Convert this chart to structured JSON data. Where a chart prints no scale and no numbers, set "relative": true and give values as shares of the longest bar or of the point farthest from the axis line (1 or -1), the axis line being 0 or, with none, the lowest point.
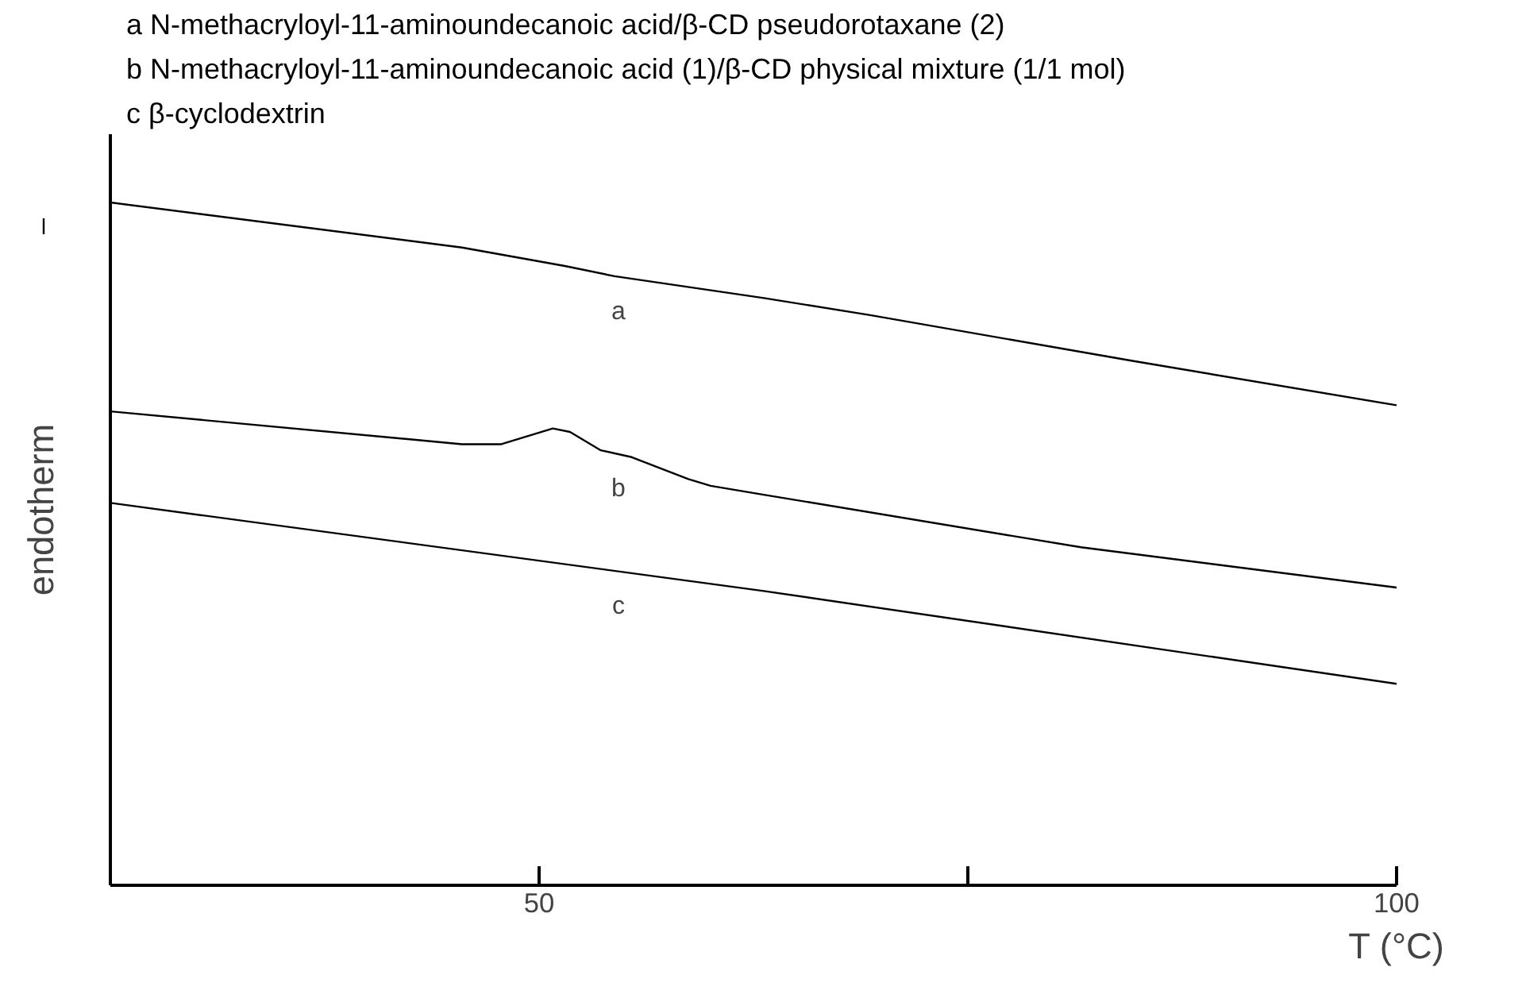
{
  "chart_data": {
    "type": "line",
    "relative": true,
    "xlabel": "T (°C)",
    "ylabel": "endotherm",
    "xlim": [
      25,
      100
    ],
    "xticks": [
      50,
      {
        "value": 75,
        "label": null
      },
      100
    ],
    "tick_labels": "x",
    "grid": false,
    "series": [
      {
        "name": "a",
        "color": "#000000",
        "x": [
          25,
          45.5,
          51.5,
          54.4,
          63.1,
          69.3,
          84.6,
          100
        ],
        "values": [
          1.0,
          0.934,
          0.907,
          0.892,
          0.86,
          0.835,
          0.768,
          0.703
        ]
      },
      {
        "name": "b",
        "color": "#000000",
        "x": [
          25,
          45.5,
          47.8,
          50.8,
          51.8,
          53.6,
          55.4,
          58.7,
          60,
          63.1,
          81.6,
          100
        ],
        "values": [
          0.694,
          0.646,
          0.646,
          0.669,
          0.664,
          0.637,
          0.627,
          0.595,
          0.585,
          0.572,
          0.495,
          0.436
        ]
      },
      {
        "name": "c",
        "color": "#000000",
        "x": [
          25,
          63.1,
          100
        ],
        "values": [
          0.56,
          0.431,
          0.295
        ]
      }
    ],
    "annotations": [
      "a   N-methacryloyl-11-aminoundecanoic acid/β-CD pseudorotaxane (2)",
      "b   N-methacryloyl-11-aminoundecanoic acid (1)/β-CD physical mixture (1/1 mol)",
      "c   β-cyclodextrin"
    ]
  }
}
